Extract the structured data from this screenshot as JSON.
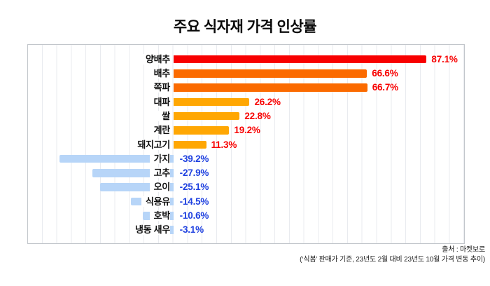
{
  "title": "주요 식자재 가격 인상률",
  "source": {
    "line1": "출처 : 마켓보로",
    "line2": "(‘식봄’ 판매가 기준, 23년도 2월 대비 23년도 10월 가격 변동 추이)"
  },
  "chart_data": {
    "type": "bar",
    "orientation": "horizontal",
    "title": "주요 식자재 가격 인상률",
    "categories": [
      "양배추",
      "배추",
      "쪽파",
      "대파",
      "쌀",
      "계란",
      "돼지고기",
      "가지",
      "고추",
      "오이",
      "식용유",
      "호박",
      "냉동 새우"
    ],
    "values": [
      87.1,
      66.6,
      66.7,
      26.2,
      22.8,
      19.2,
      11.3,
      -39.2,
      -27.9,
      -25.1,
      -14.5,
      -10.6,
      -3.1
    ],
    "value_labels": [
      "87.1%",
      "66.6%",
      "66.7%",
      "26.2%",
      "22.8%",
      "19.2%",
      "11.3%",
      "-39.2%",
      "-27.9%",
      "-25.1%",
      "-14.5%",
      "-10.6%",
      "-3.1%"
    ],
    "xlim": [
      -50,
      100
    ],
    "gridline_step": 5,
    "grid": "vertical-on",
    "legend": "none",
    "bar_colors": [
      "#f80000",
      "#fb6a00",
      "#fb6a00",
      "#ffa703",
      "#ffa703",
      "#ffa703",
      "#ffa703",
      "#b7d5f8",
      "#b7d5f8",
      "#b7d5f8",
      "#b7d5f8",
      "#b7d5f8",
      "#b7d5f8"
    ],
    "colors": {
      "positive_value_label": "#f80000",
      "negative_value_label": "#1f41e0",
      "category_label": "#111111",
      "gridline": "#e9ebef",
      "plot_border": "#c2c6cb"
    }
  }
}
